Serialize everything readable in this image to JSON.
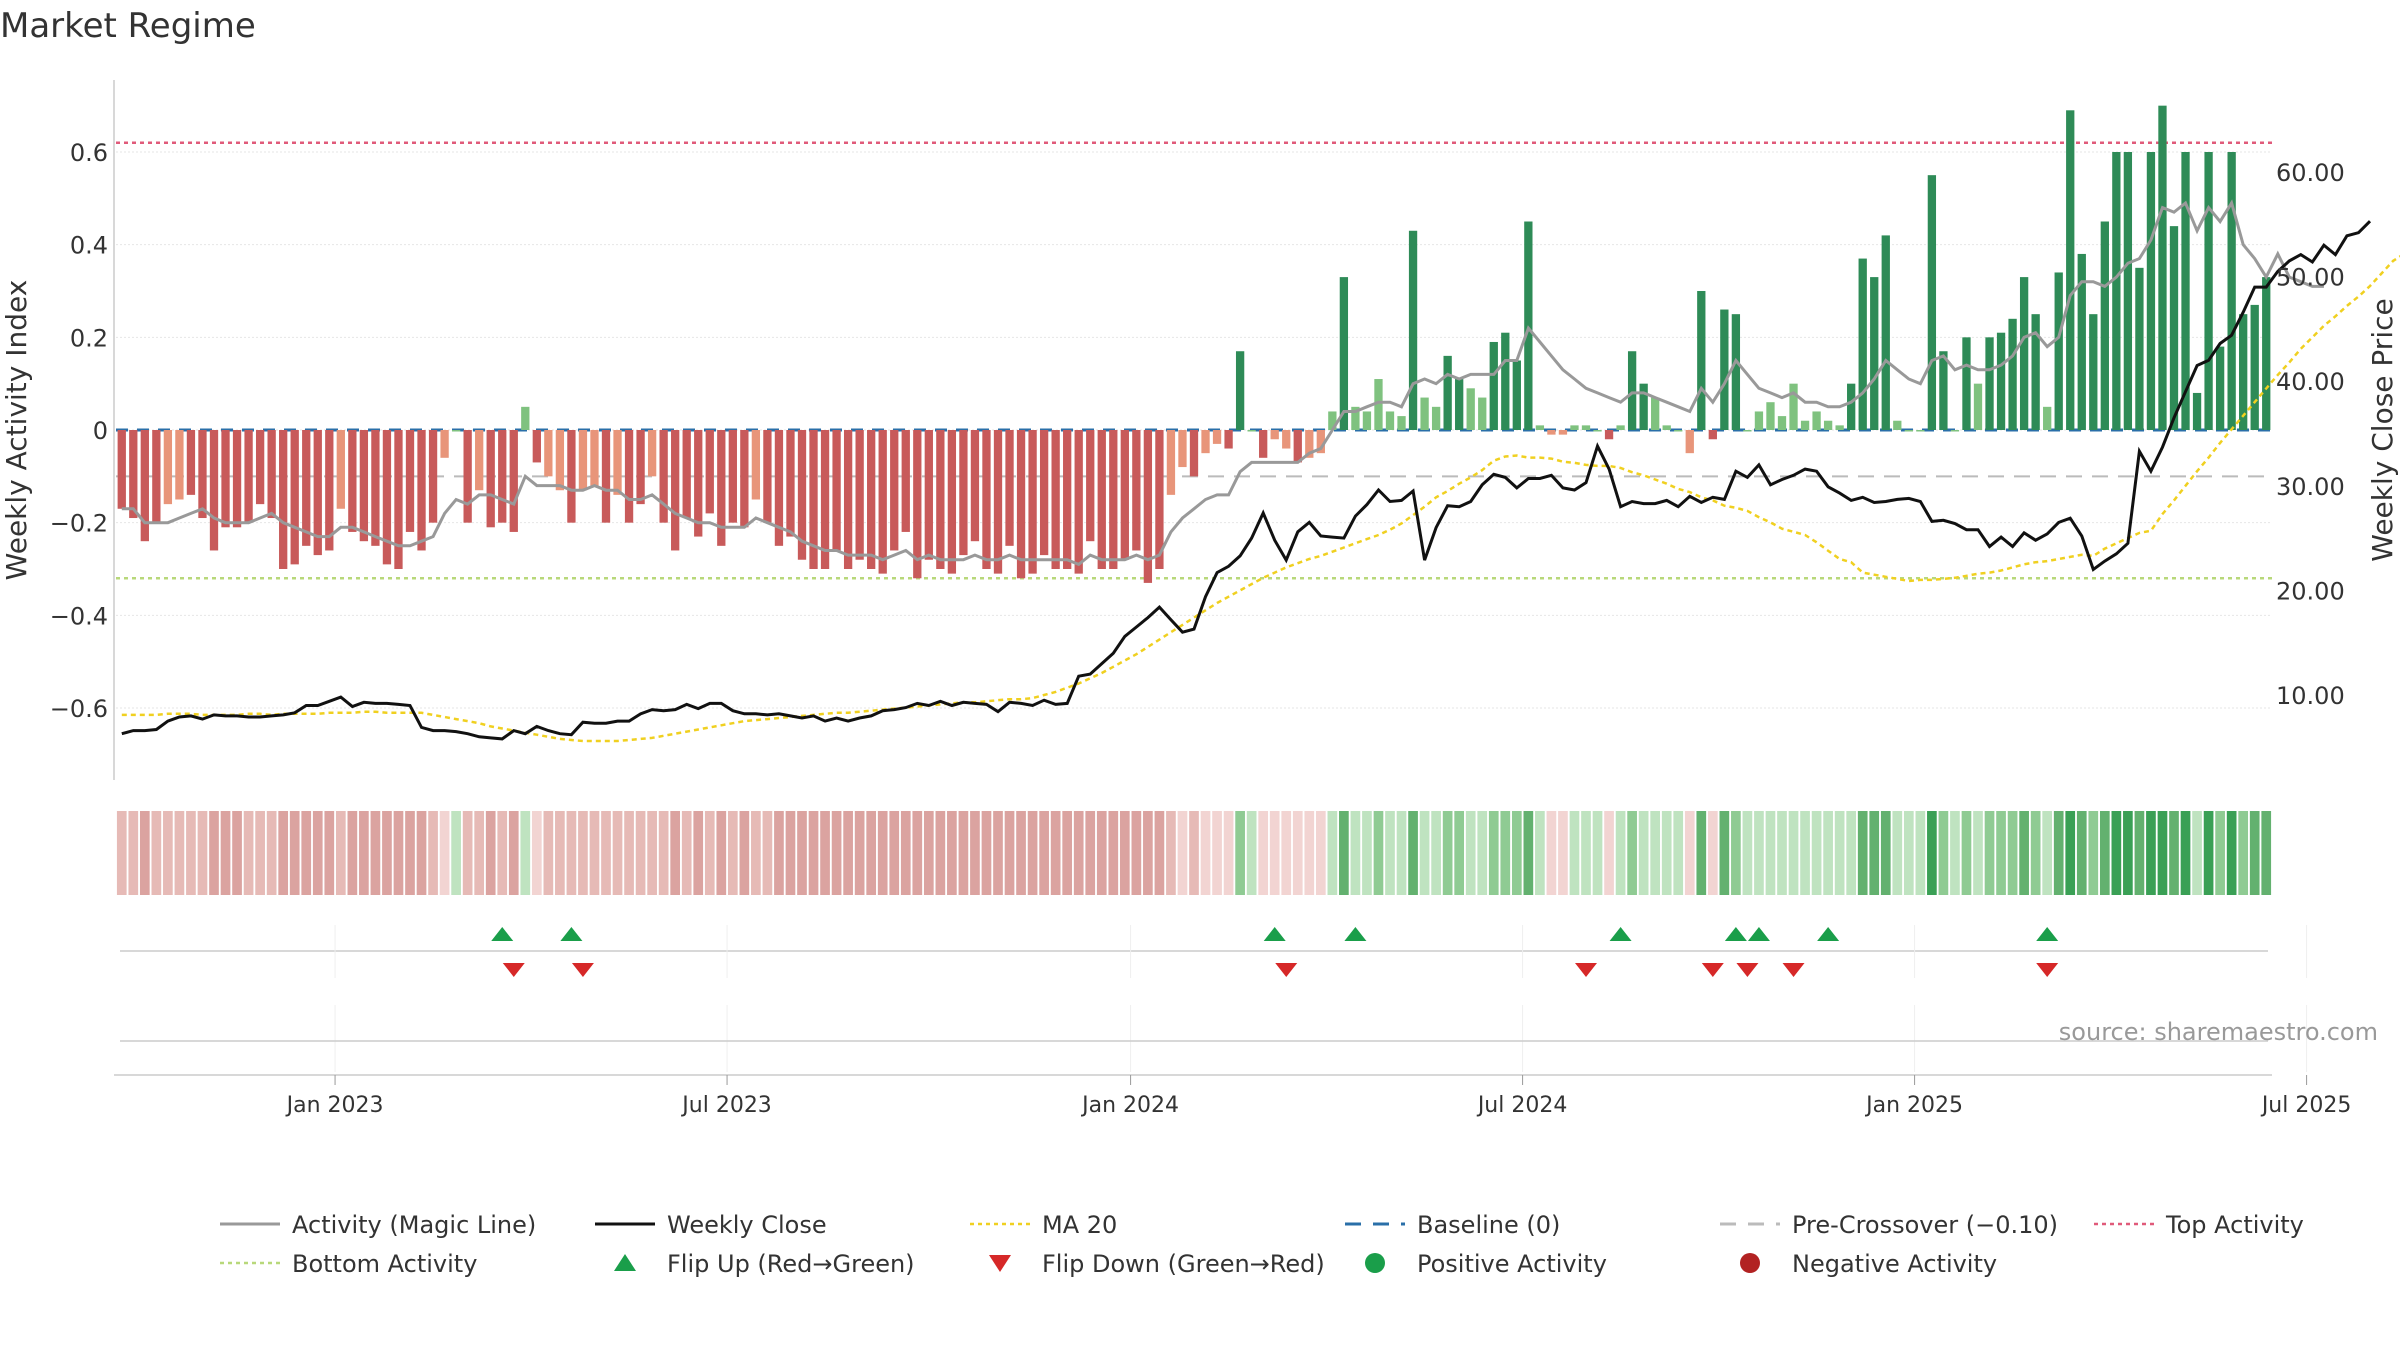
{
  "chart_data": {
    "type": "bar",
    "title": "Market Regime",
    "source": "source: sharemaestro.com",
    "y_left_label": "Weekly Activity Index",
    "y_right_label": "Weekly Close Price",
    "y_left_ticks": [
      "0.6",
      "0.4",
      "0.2",
      "0",
      "−0.2",
      "−0.4",
      "−0.6"
    ],
    "y_left_tick_values": [
      0.6,
      0.4,
      0.2,
      0,
      -0.2,
      -0.4,
      -0.6
    ],
    "y_right_ticks": [
      "60.00",
      "50.00",
      "40.00",
      "30.00",
      "20.00",
      "10.00"
    ],
    "y_right_tick_values": [
      60,
      50,
      40,
      30,
      20,
      10
    ],
    "x_ticks": [
      "Jan 2023",
      "Jul 2023",
      "Jan 2024",
      "Jul 2024",
      "Jan 2025",
      "Jul 2025"
    ],
    "x_tick_weeks": [
      19,
      53,
      88,
      122,
      156,
      190
    ],
    "ylim_left": [
      -0.75,
      0.75
    ],
    "ylim_right": [
      1.4,
      69.1
    ],
    "first_week": "2022-10-16",
    "reference_lines": {
      "top_activity": 0.62,
      "bottom_activity": -0.32,
      "pre_crossover": -0.1,
      "baseline": 0
    },
    "colors": {
      "pos_strong": "#2e8b57",
      "pos_weak": "#7fc27f",
      "neg_strong": "#c85a5a",
      "neg_weak": "#e8957a",
      "magic_line": "#999999",
      "close": "#111111",
      "ma20": "#f0d020",
      "baseline": "#2a6fa8",
      "top_activity": "#e05a7a",
      "bottom_activity": "#b8d87a",
      "pre_crossover": "#bbbbbb",
      "flip_up": "#1a9e4a",
      "flip_down": "#d62828",
      "negative_dot": "#b22222"
    },
    "series": [
      {
        "name": "Weekly Activity Index",
        "values": [
          -0.17,
          -0.19,
          -0.24,
          -0.2,
          -0.16,
          -0.15,
          -0.14,
          -0.19,
          -0.26,
          -0.21,
          -0.21,
          -0.2,
          -0.16,
          -0.19,
          -0.3,
          -0.29,
          -0.25,
          -0.27,
          -0.26,
          -0.17,
          -0.22,
          -0.24,
          -0.25,
          -0.29,
          -0.3,
          -0.22,
          -0.26,
          -0.2,
          -0.06,
          0.0,
          -0.2,
          -0.13,
          -0.21,
          -0.2,
          -0.22,
          0.05,
          -0.07,
          -0.1,
          -0.13,
          -0.2,
          -0.13,
          -0.12,
          -0.2,
          -0.14,
          -0.2,
          -0.16,
          -0.1,
          -0.2,
          -0.26,
          -0.19,
          -0.23,
          -0.18,
          -0.25,
          -0.2,
          -0.21,
          -0.15,
          -0.2,
          -0.25,
          -0.23,
          -0.28,
          -0.3,
          -0.3,
          -0.26,
          -0.3,
          -0.28,
          -0.3,
          -0.31,
          -0.26,
          -0.22,
          -0.32,
          -0.28,
          -0.3,
          -0.31,
          -0.27,
          -0.24,
          -0.3,
          -0.31,
          -0.25,
          -0.32,
          -0.31,
          -0.27,
          -0.3,
          -0.3,
          -0.31,
          -0.24,
          -0.3,
          -0.3,
          -0.28,
          -0.26,
          -0.33,
          -0.3,
          -0.14,
          -0.08,
          -0.1,
          -0.05,
          -0.03,
          -0.04,
          0.17,
          0.0,
          -0.06,
          -0.02,
          -0.04,
          -0.07,
          -0.06,
          -0.05,
          0.04,
          0.33,
          0.05,
          0.04,
          0.11,
          0.04,
          0.03,
          0.43,
          0.07,
          0.05,
          0.16,
          0.11,
          0.09,
          0.07,
          0.19,
          0.21,
          0.15,
          0.45,
          0.01,
          -0.01,
          -0.01,
          0.01,
          0.01,
          0.0,
          -0.02,
          0.01,
          0.17,
          0.1,
          0.07,
          0.01,
          0.0,
          -0.05,
          0.3,
          -0.02,
          0.26,
          0.25,
          0.0,
          0.04,
          0.06,
          0.03,
          0.1,
          0.02,
          0.04,
          0.02,
          0.01,
          0.1,
          0.37,
          0.33,
          0.42,
          0.02,
          0.0,
          0.0,
          0.55,
          0.17,
          0.0,
          0.2,
          0.1,
          0.2,
          0.21,
          0.24,
          0.33,
          0.25,
          0.05,
          0.34,
          0.69,
          0.38,
          0.25,
          0.45,
          0.6,
          0.6,
          0.35,
          0.6,
          0.7,
          0.44,
          0.6,
          0.08,
          0.6,
          0.18,
          0.6,
          0.25,
          0.27,
          0.33
        ]
      },
      {
        "name": "Activity (Magic Line)",
        "values": [
          -0.17,
          -0.17,
          -0.2,
          -0.2,
          -0.2,
          -0.19,
          -0.18,
          -0.17,
          -0.19,
          -0.2,
          -0.2,
          -0.2,
          -0.19,
          -0.18,
          -0.2,
          -0.21,
          -0.22,
          -0.23,
          -0.23,
          -0.21,
          -0.21,
          -0.22,
          -0.23,
          -0.24,
          -0.25,
          -0.25,
          -0.24,
          -0.23,
          -0.18,
          -0.15,
          -0.16,
          -0.14,
          -0.14,
          -0.15,
          -0.16,
          -0.1,
          -0.12,
          -0.12,
          -0.12,
          -0.13,
          -0.13,
          -0.12,
          -0.13,
          -0.13,
          -0.15,
          -0.15,
          -0.14,
          -0.16,
          -0.18,
          -0.19,
          -0.2,
          -0.2,
          -0.21,
          -0.21,
          -0.21,
          -0.19,
          -0.2,
          -0.21,
          -0.22,
          -0.24,
          -0.25,
          -0.26,
          -0.26,
          -0.27,
          -0.27,
          -0.27,
          -0.28,
          -0.27,
          -0.26,
          -0.28,
          -0.27,
          -0.28,
          -0.28,
          -0.28,
          -0.27,
          -0.28,
          -0.28,
          -0.27,
          -0.28,
          -0.28,
          -0.28,
          -0.28,
          -0.28,
          -0.29,
          -0.27,
          -0.28,
          -0.28,
          -0.28,
          -0.27,
          -0.28,
          -0.27,
          -0.22,
          -0.19,
          -0.17,
          -0.15,
          -0.14,
          -0.14,
          -0.09,
          -0.07,
          -0.07,
          -0.07,
          -0.07,
          -0.07,
          -0.05,
          -0.04,
          0.0,
          0.04,
          0.04,
          0.05,
          0.06,
          0.06,
          0.05,
          0.1,
          0.11,
          0.1,
          0.12,
          0.11,
          0.12,
          0.12,
          0.12,
          0.15,
          0.15,
          0.22,
          0.19,
          0.16,
          0.13,
          0.11,
          0.09,
          0.08,
          0.07,
          0.06,
          0.08,
          0.08,
          0.07,
          0.06,
          0.05,
          0.04,
          0.09,
          0.06,
          0.1,
          0.15,
          0.12,
          0.09,
          0.08,
          0.07,
          0.08,
          0.06,
          0.06,
          0.05,
          0.05,
          0.06,
          0.08,
          0.11,
          0.15,
          0.13,
          0.11,
          0.1,
          0.15,
          0.16,
          0.13,
          0.14,
          0.13,
          0.13,
          0.14,
          0.16,
          0.2,
          0.21,
          0.18,
          0.2,
          0.29,
          0.32,
          0.32,
          0.31,
          0.33,
          0.36,
          0.37,
          0.41,
          0.48,
          0.47,
          0.49,
          0.43,
          0.48,
          0.45,
          0.49,
          0.4,
          0.37,
          0.33,
          0.38,
          0.33,
          0.32,
          0.31,
          0.31
        ]
      },
      {
        "name": "Weekly Close",
        "values": [
          6.3,
          6.6,
          6.6,
          6.7,
          7.5,
          7.9,
          8.0,
          7.7,
          8.1,
          8.0,
          8.0,
          7.9,
          7.9,
          8.0,
          8.1,
          8.3,
          9.0,
          9.0,
          9.4,
          9.8,
          8.9,
          9.3,
          9.2,
          9.2,
          9.1,
          9.0,
          6.9,
          6.6,
          6.6,
          6.5,
          6.3,
          6.0,
          5.9,
          5.8,
          6.6,
          6.3,
          7.0,
          6.6,
          6.3,
          6.2,
          7.4,
          7.3,
          7.3,
          7.5,
          7.5,
          8.2,
          8.6,
          8.5,
          8.6,
          9.1,
          8.7,
          9.2,
          9.2,
          8.5,
          8.2,
          8.2,
          8.1,
          8.2,
          8.0,
          7.8,
          8.0,
          7.5,
          7.8,
          7.5,
          7.8,
          8.0,
          8.5,
          8.6,
          8.8,
          9.2,
          9.0,
          9.4,
          9.0,
          9.3,
          9.2,
          9.1,
          8.4,
          9.3,
          9.2,
          9.0,
          9.5,
          9.1,
          9.2,
          11.8,
          12.0,
          13.0,
          14.0,
          15.6,
          16.5,
          17.4,
          18.4,
          17.2,
          16.0,
          16.3,
          19.4,
          21.7,
          22.3,
          23.3,
          25.0,
          27.4,
          24.8,
          22.9,
          25.6,
          26.5,
          25.2,
          25.1,
          25.0,
          27.1,
          28.2,
          29.6,
          28.5,
          28.6,
          29.5,
          22.9,
          26.0,
          28.1,
          28.0,
          28.5,
          30.1,
          31.1,
          30.8,
          29.8,
          30.7,
          30.7,
          31.0,
          29.8,
          29.6,
          30.3,
          33.8,
          31.6,
          28.0,
          28.5,
          28.3,
          28.3,
          28.6,
          28.0,
          29.0,
          28.4,
          28.9,
          28.7,
          31.4,
          30.8,
          32.0,
          30.1,
          30.6,
          31.0,
          31.6,
          31.4,
          29.9,
          29.3,
          28.6,
          28.9,
          28.4,
          28.5,
          28.7,
          28.8,
          28.5,
          26.6,
          26.7,
          26.4,
          25.8,
          25.8,
          24.2,
          25.1,
          24.2,
          25.5,
          24.8,
          25.4,
          26.5,
          26.9,
          25.2,
          22.0,
          22.8,
          23.5,
          24.5,
          33.3,
          31.4,
          33.7,
          36.5,
          39.0,
          41.5,
          42.0,
          43.6,
          44.4,
          46.6,
          49.0,
          49.0,
          50.5,
          51.5,
          52.1,
          51.4,
          53.0,
          52.1,
          53.9,
          54.2,
          55.3
        ]
      },
      {
        "name": "MA 20",
        "values": [
          8.1,
          8.1,
          8.1,
          8.1,
          8.2,
          8.2,
          8.2,
          8.1,
          8.1,
          8.1,
          8.1,
          8.2,
          8.2,
          8.1,
          8.2,
          8.2,
          8.2,
          8.2,
          8.3,
          8.3,
          8.3,
          8.4,
          8.4,
          8.3,
          8.3,
          8.3,
          8.3,
          8.1,
          7.9,
          7.7,
          7.5,
          7.3,
          7.0,
          6.8,
          6.6,
          6.4,
          6.2,
          6.0,
          5.8,
          5.7,
          5.6,
          5.6,
          5.6,
          5.6,
          5.7,
          5.8,
          5.9,
          6.1,
          6.3,
          6.5,
          6.7,
          6.9,
          7.1,
          7.3,
          7.5,
          7.6,
          7.7,
          7.8,
          7.9,
          8.0,
          8.1,
          8.2,
          8.3,
          8.3,
          8.4,
          8.5,
          8.6,
          8.7,
          8.8,
          8.9,
          9.0,
          9.1,
          9.2,
          9.3,
          9.3,
          9.4,
          9.5,
          9.6,
          9.6,
          9.7,
          10.0,
          10.3,
          10.7,
          11.1,
          11.6,
          12.1,
          12.7,
          13.3,
          13.9,
          14.6,
          15.3,
          16.0,
          16.7,
          17.4,
          18.1,
          18.8,
          19.4,
          20.0,
          20.6,
          21.2,
          21.7,
          22.2,
          22.6,
          23.0,
          23.3,
          23.7,
          24.1,
          24.5,
          24.9,
          25.3,
          25.8,
          26.4,
          27.2,
          28.0,
          28.9,
          29.5,
          30.2,
          30.8,
          31.5,
          32.4,
          32.8,
          32.9,
          32.7,
          32.7,
          32.6,
          32.3,
          32.2,
          32.0,
          31.9,
          31.9,
          31.7,
          31.3,
          31.0,
          30.6,
          30.2,
          29.7,
          29.4,
          28.9,
          28.6,
          28.1,
          27.9,
          27.6,
          27.0,
          26.5,
          25.9,
          25.6,
          25.3,
          24.6,
          23.8,
          23.0,
          22.7,
          21.7,
          21.5,
          21.3,
          21.1,
          20.9,
          21.0,
          21.0,
          21.1,
          21.2,
          21.4,
          21.6,
          21.7,
          21.9,
          22.2,
          22.5,
          22.7,
          22.8,
          23.0,
          23.2,
          23.4,
          23.3,
          24.0,
          24.5,
          25.0,
          25.5,
          25.7,
          27.3,
          28.6,
          30.0,
          31.4,
          32.7,
          34.1,
          35.4,
          36.7,
          38.0,
          39.3,
          40.6,
          41.8,
          43.1,
          44.2,
          45.3,
          46.2,
          47.2,
          48.1,
          49.1,
          50.3,
          51.5,
          52.2
        ]
      }
    ],
    "flip_up_weeks": [
      33,
      39,
      100,
      107,
      130,
      140,
      142,
      148,
      167
    ],
    "flip_down_weeks": [
      34,
      40,
      101,
      127,
      138,
      141,
      145,
      167
    ],
    "legend": [
      {
        "label": "Activity (Magic Line)",
        "kind": "line",
        "color": "#999999"
      },
      {
        "label": "Weekly Close",
        "kind": "line",
        "color": "#111111"
      },
      {
        "label": "MA 20",
        "kind": "dotted",
        "color": "#f0d020"
      },
      {
        "label": "Baseline (0)",
        "kind": "dashed",
        "color": "#2a6fa8"
      },
      {
        "label": "Pre-Crossover (−0.10)",
        "kind": "dashed",
        "color": "#bbbbbb"
      },
      {
        "label": "Top Activity",
        "kind": "dotted",
        "color": "#e05a7a"
      },
      {
        "label": "Bottom Activity",
        "kind": "dotted",
        "color": "#b8d87a"
      },
      {
        "label": "Flip Up (Red→Green)",
        "kind": "tri-up",
        "color": "#1a9e4a"
      },
      {
        "label": "Flip Down (Green→Red)",
        "kind": "tri-down",
        "color": "#d62828"
      },
      {
        "label": "Positive Activity",
        "kind": "dot",
        "color": "#1a9e4a"
      },
      {
        "label": "Negative Activity",
        "kind": "dot",
        "color": "#b22222"
      }
    ]
  }
}
